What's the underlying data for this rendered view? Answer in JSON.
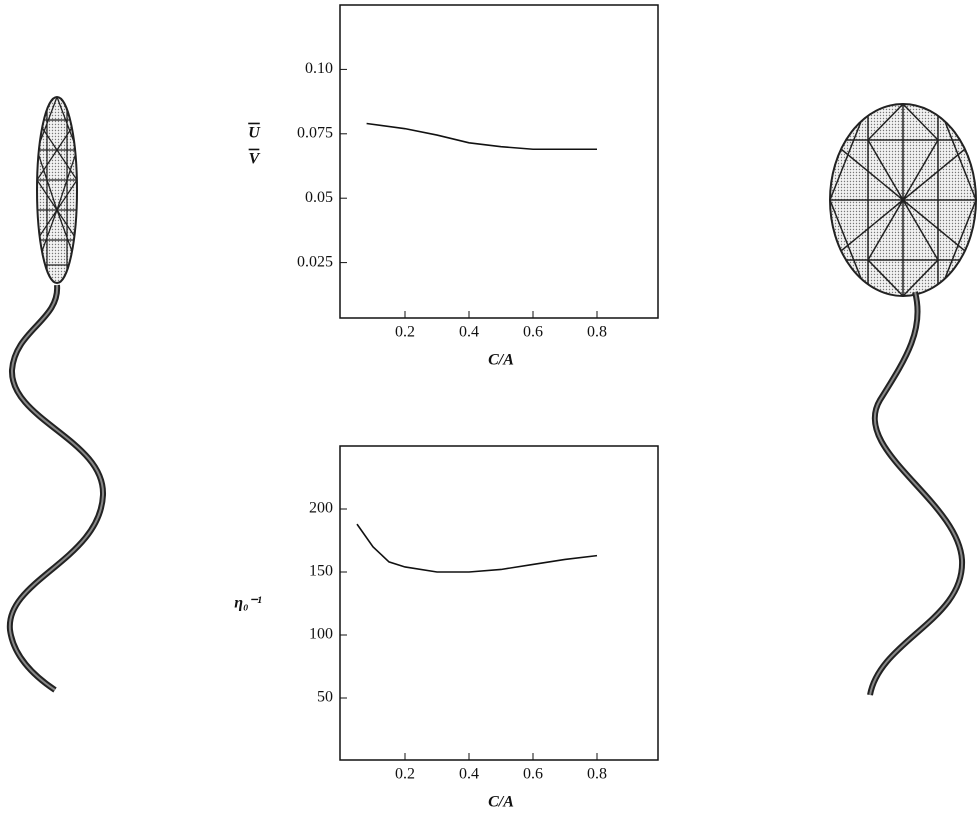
{
  "chart_data": [
    {
      "type": "line",
      "ylabel_numerator": "U",
      "ylabel_denominator": "V",
      "xlabel": "C/A",
      "x": [
        0.08,
        0.2,
        0.3,
        0.4,
        0.5,
        0.6,
        0.7,
        0.8
      ],
      "values": [
        0.079,
        0.077,
        0.0745,
        0.0715,
        0.07,
        0.069,
        0.069,
        0.069
      ],
      "color": "#111111",
      "xlim": [
        0,
        1
      ],
      "xticks": [
        0.2,
        0.4,
        0.6,
        0.8
      ],
      "ylim": [
        0,
        0.125
      ],
      "yticks": [
        {
          "value": 0.1,
          "label": "0.10"
        },
        0.075,
        0.05,
        0.025
      ]
    },
    {
      "type": "line",
      "ylabel": "η₀⁻¹",
      "xlabel": "C/A",
      "x": [
        0.05,
        0.1,
        0.15,
        0.2,
        0.3,
        0.4,
        0.5,
        0.6,
        0.7,
        0.8
      ],
      "values": [
        188,
        170,
        158,
        154,
        150,
        150,
        152,
        156,
        160,
        163
      ],
      "color": "#111111",
      "xlim": [
        0,
        1
      ],
      "xticks": [
        0.2,
        0.4,
        0.6,
        0.8
      ],
      "ylim": [
        0,
        250
      ],
      "yticks": [
        200,
        150,
        100,
        50
      ]
    }
  ]
}
